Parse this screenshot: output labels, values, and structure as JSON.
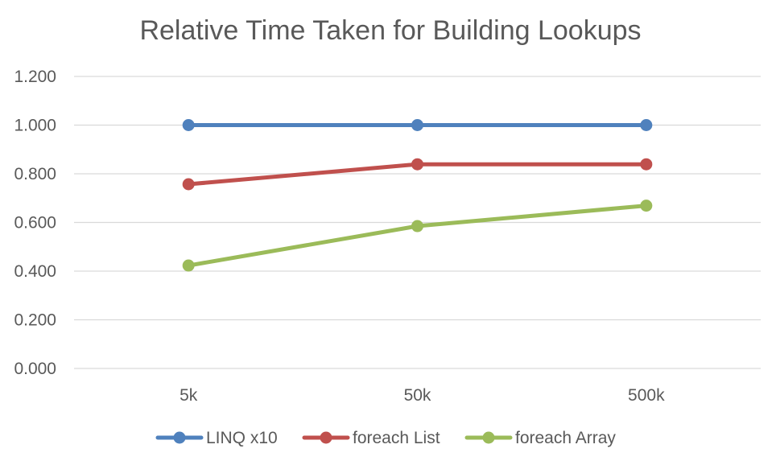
{
  "chart_data": {
    "type": "line",
    "title": "Relative Time Taken for Building Lookups",
    "categories": [
      "5k",
      "50k",
      "500k"
    ],
    "ylim": [
      0,
      1.2
    ],
    "yticks": [
      0,
      0.2,
      0.4,
      0.6,
      0.8,
      1.0,
      1.2
    ],
    "ytick_labels": [
      "0.000",
      "0.200",
      "0.400",
      "0.600",
      "0.800",
      "1.000",
      "1.200"
    ],
    "grid": "horizontal",
    "legend_position": "bottom",
    "series": [
      {
        "name": "LINQ x10",
        "color": "#4F81BD",
        "values": [
          1.0,
          1.0,
          1.0
        ]
      },
      {
        "name": "foreach List",
        "color": "#C0504D",
        "values": [
          0.757,
          0.839,
          0.839
        ]
      },
      {
        "name": "foreach Array",
        "color": "#9BBB59",
        "values": [
          0.423,
          0.585,
          0.669
        ]
      }
    ]
  }
}
